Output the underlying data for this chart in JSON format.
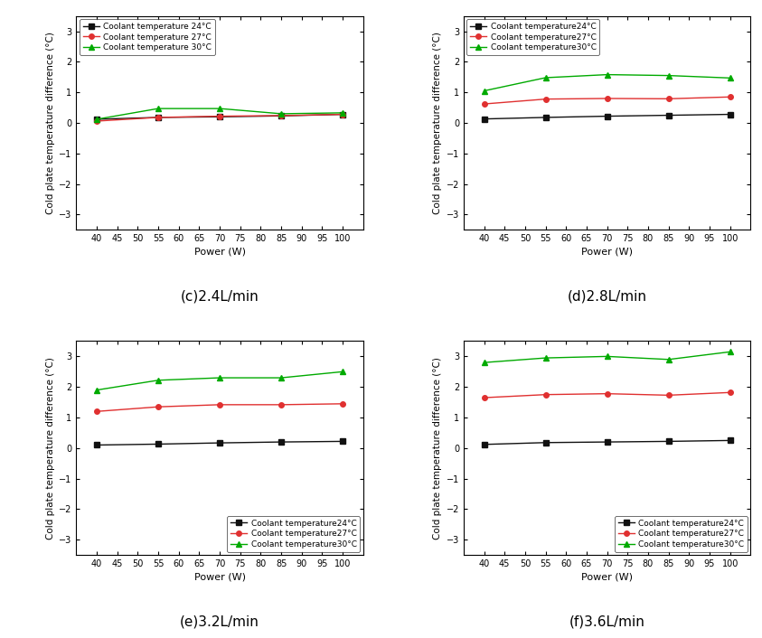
{
  "power": [
    40,
    55,
    70,
    85,
    100
  ],
  "panels": [
    {
      "label": "(c)2.4L/min",
      "legend_loc": "upper left",
      "legend_labels": [
        "Coolant temperature 24°C",
        "Coolant temperature 27°C",
        "Coolant temperature 30°C"
      ],
      "data": {
        "24": [
          0.12,
          0.18,
          0.2,
          0.23,
          0.28
        ],
        "27": [
          0.06,
          0.18,
          0.22,
          0.24,
          0.28
        ],
        "30": [
          0.12,
          0.47,
          0.47,
          0.3,
          0.33
        ]
      }
    },
    {
      "label": "(d)2.8L/min",
      "legend_loc": "upper left",
      "legend_labels": [
        "Coolant temperature24°C",
        "Coolant temperature27°C",
        "Coolant temperature30°C"
      ],
      "data": {
        "24": [
          0.13,
          0.18,
          0.22,
          0.25,
          0.28
        ],
        "27": [
          0.62,
          0.78,
          0.8,
          0.79,
          0.85
        ],
        "30": [
          1.05,
          1.48,
          1.58,
          1.55,
          1.47
        ]
      }
    },
    {
      "label": "(e)3.2L/min",
      "legend_loc": "lower right",
      "legend_labels": [
        "Coolant temperature24°C",
        "Coolant temperature27°C",
        "Coolant temperature30°C"
      ],
      "data": {
        "24": [
          0.1,
          0.13,
          0.17,
          0.2,
          0.22
        ],
        "27": [
          1.2,
          1.35,
          1.42,
          1.42,
          1.45
        ],
        "30": [
          1.9,
          2.22,
          2.3,
          2.3,
          2.5
        ]
      }
    },
    {
      "label": "(f)3.6L/min",
      "legend_loc": "lower right",
      "legend_labels": [
        "Coolant temperature24°C",
        "Coolant temperature27°C",
        "Coolant temperature30°C"
      ],
      "data": {
        "24": [
          0.12,
          0.18,
          0.2,
          0.22,
          0.25
        ],
        "27": [
          1.65,
          1.75,
          1.78,
          1.73,
          1.82
        ],
        "30": [
          2.8,
          2.95,
          3.0,
          2.9,
          3.15
        ]
      }
    }
  ],
  "colors": {
    "24": "#111111",
    "27": "#e03030",
    "30": "#00aa00"
  },
  "markers": {
    "24": "s",
    "27": "o",
    "30": "^"
  },
  "ylim": [
    -3.5,
    3.5
  ],
  "yticks": [
    -3,
    -2,
    -1,
    0,
    1,
    2,
    3
  ],
  "xlim": [
    35,
    105
  ],
  "xticks": [
    40,
    45,
    50,
    55,
    60,
    65,
    70,
    75,
    80,
    85,
    90,
    95,
    100
  ],
  "xlabel": "Power (W)",
  "ylabel": "Cold plate temperature difference (°C)",
  "background": "#ffffff"
}
